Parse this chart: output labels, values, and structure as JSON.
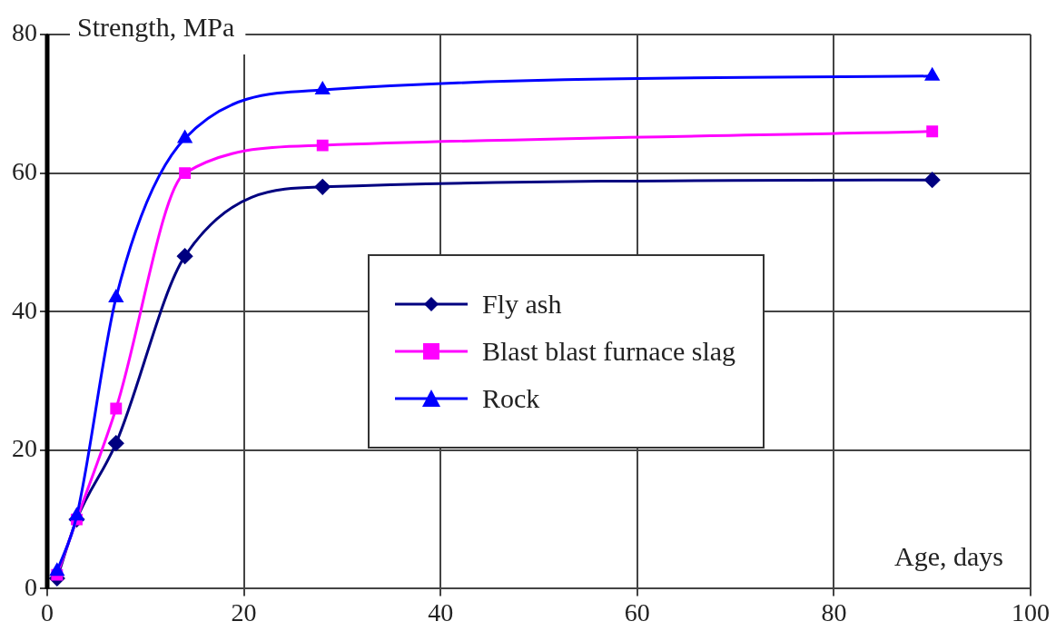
{
  "chart_data": {
    "type": "line",
    "xlabel": "Age, days",
    "ylabel": "Strength, MPa",
    "x": [
      1,
      3,
      7,
      14,
      28,
      90
    ],
    "series": [
      {
        "name": "Fly ash",
        "color": "#000080",
        "marker": "diamond",
        "values": [
          1.5,
          10,
          21,
          48,
          58,
          59
        ]
      },
      {
        "name": "Blast blast furnace slag",
        "color": "#ff00ff",
        "marker": "square",
        "values": [
          2,
          10,
          26,
          60,
          64,
          66
        ]
      },
      {
        "name": "Rock",
        "color": "#0000ff",
        "marker": "triangle",
        "values": [
          2.5,
          10.5,
          42,
          65,
          72,
          74
        ]
      }
    ],
    "xlim": [
      0,
      100
    ],
    "xticks": [
      0,
      20,
      40,
      60,
      80,
      100
    ],
    "ylim": [
      0,
      80
    ],
    "yticks": [
      0,
      20,
      40,
      60,
      80
    ],
    "grid": true,
    "legend": "right"
  }
}
